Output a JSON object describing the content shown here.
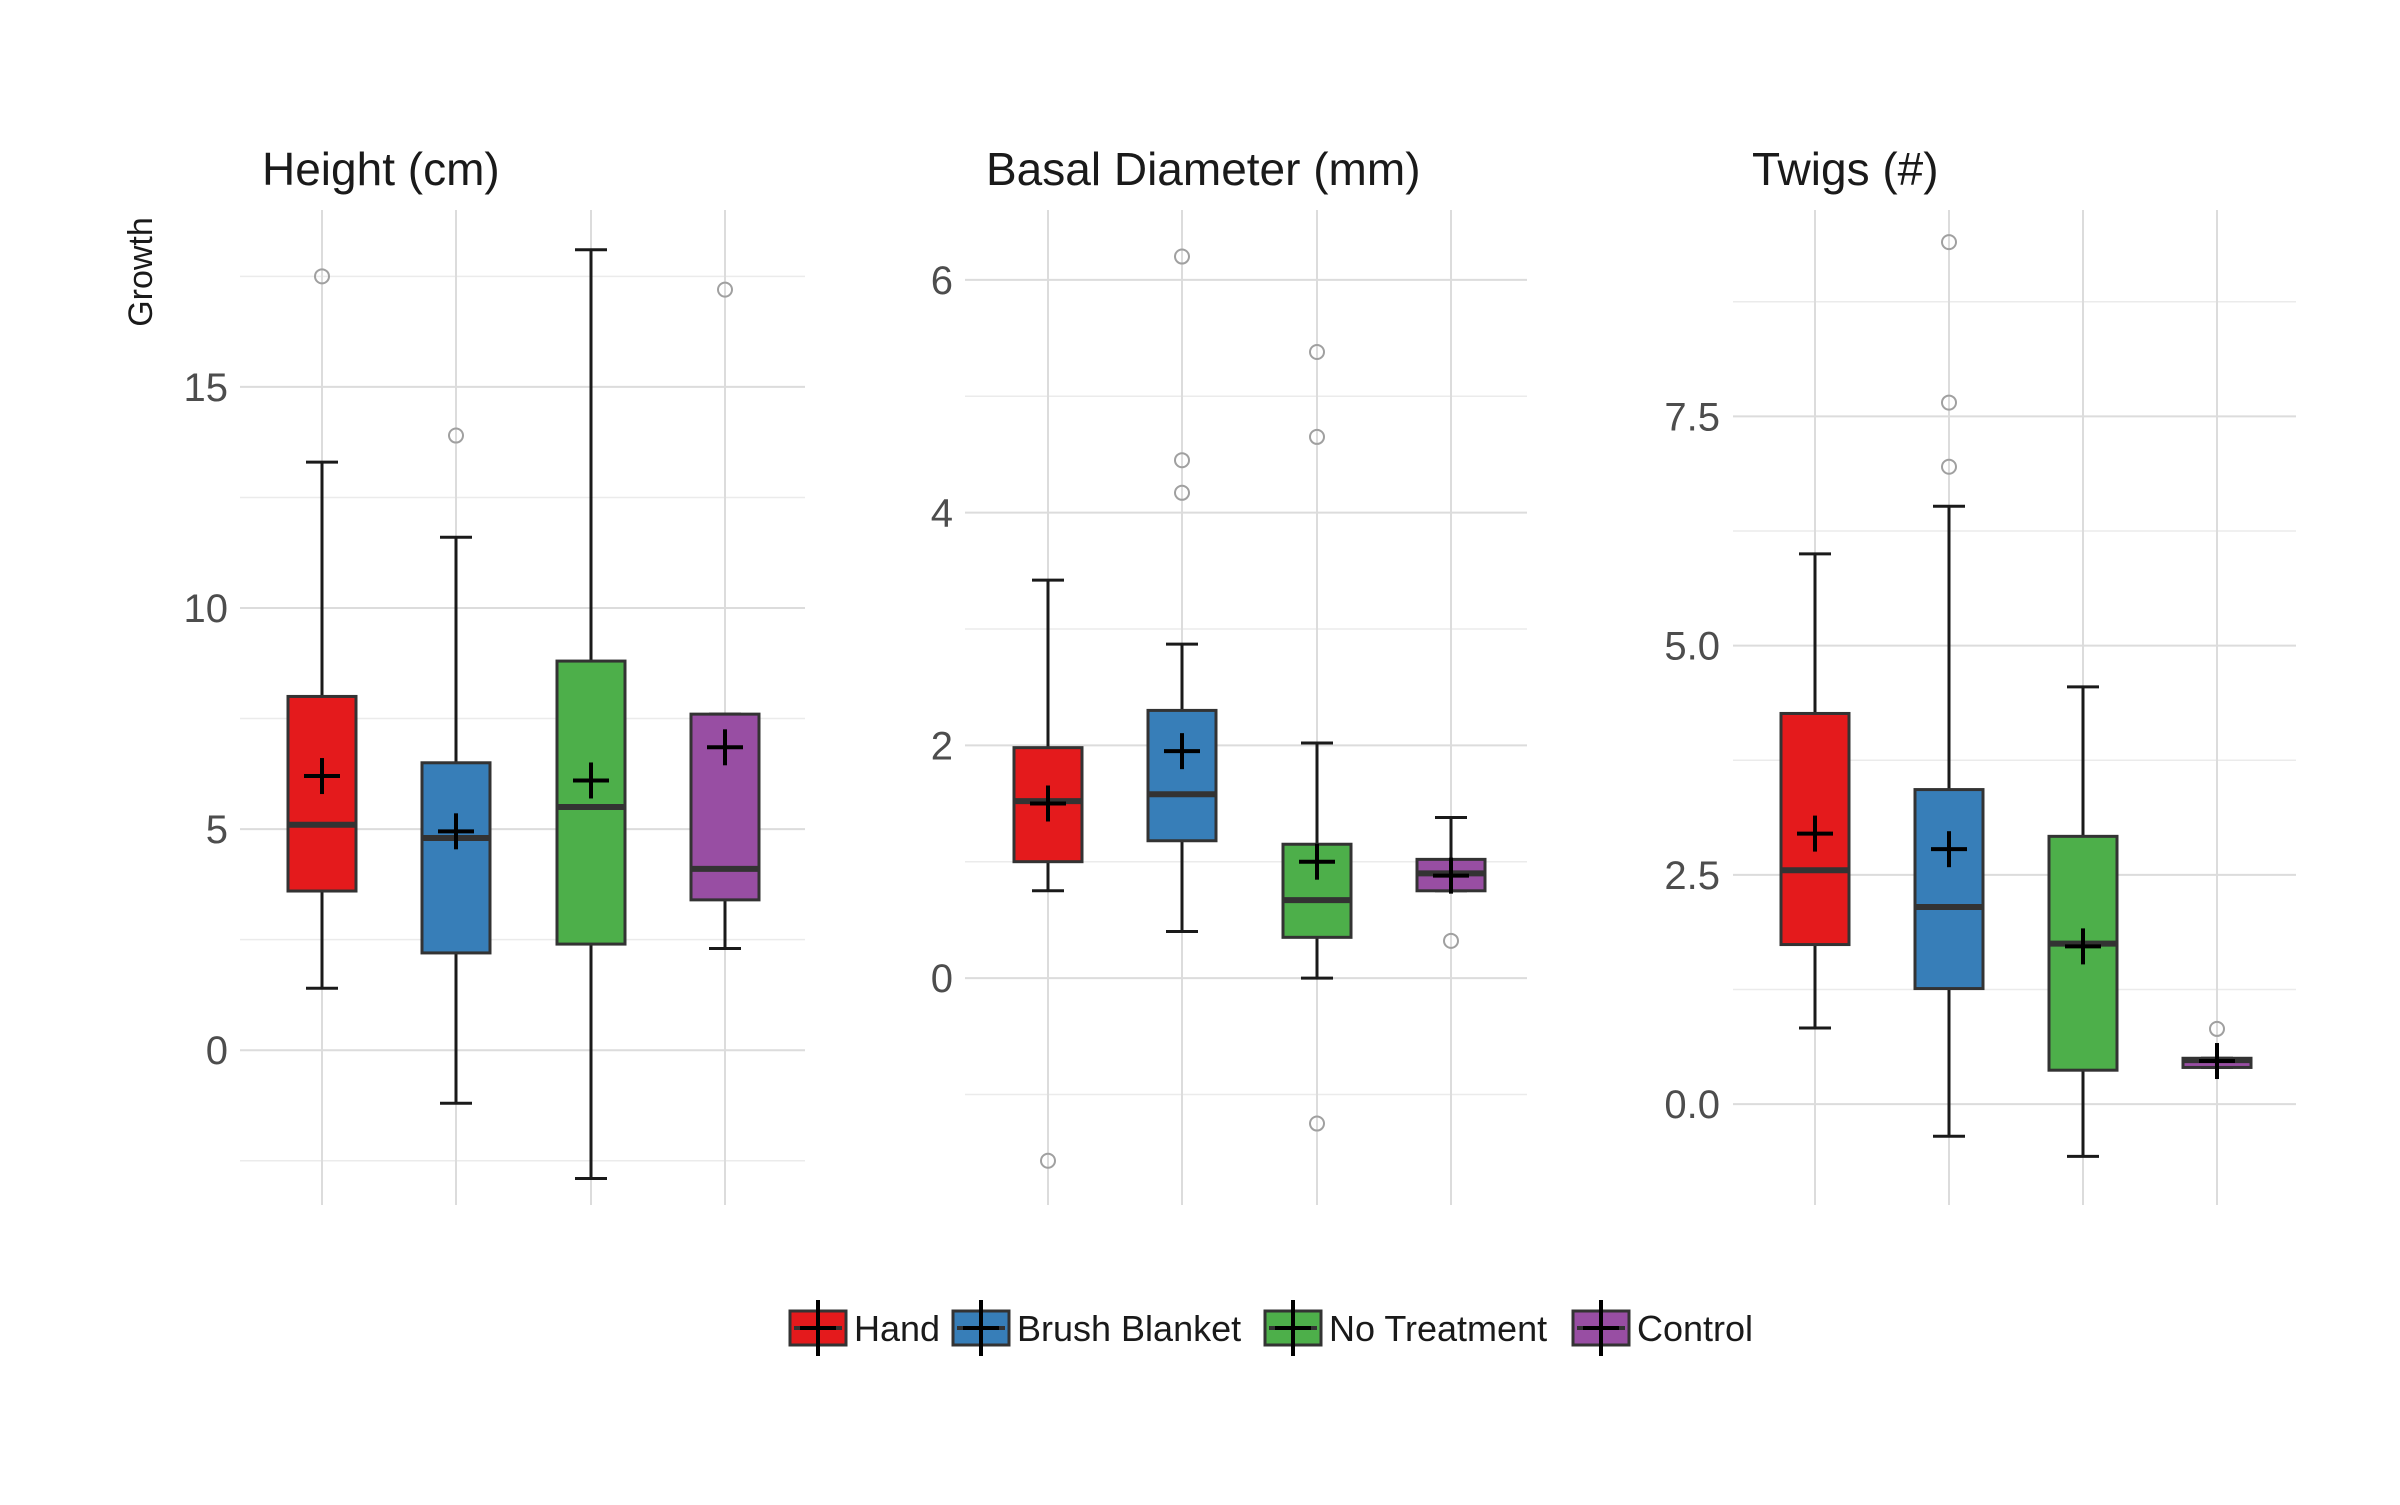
{
  "chart_data": {
    "type": "boxplot",
    "ylabel": "Growth",
    "legend": {
      "position": "bottom",
      "entries": [
        "Hand",
        "Brush Blanket",
        "No Treatment",
        "Control"
      ]
    },
    "colors": {
      "Hand": "#e41a1c",
      "Brush Blanket": "#377eb8",
      "No Treatment": "#4daf4a",
      "Control": "#984ea3"
    },
    "grid": true,
    "panels": [
      {
        "title": "Height (cm)",
        "ylim": [
          -3.5,
          19.0
        ],
        "yticks": [
          0,
          5,
          10,
          15
        ],
        "yticklabels": [
          "0",
          "5",
          "10",
          "15"
        ],
        "boxes": [
          {
            "group": "Hand",
            "whisker_low": 1.4,
            "q1": 3.6,
            "median": 5.1,
            "q3": 8.0,
            "whisker_high": 13.3,
            "mean": 6.2,
            "outliers": [
              17.5
            ]
          },
          {
            "group": "Brush Blanket",
            "whisker_low": -1.2,
            "q1": 2.2,
            "median": 4.8,
            "q3": 6.5,
            "whisker_high": 11.6,
            "mean": 4.95,
            "outliers": [
              13.9
            ]
          },
          {
            "group": "No Treatment",
            "whisker_low": -2.9,
            "q1": 2.4,
            "median": 5.5,
            "q3": 8.8,
            "whisker_high": 18.1,
            "mean": 6.1,
            "outliers": []
          },
          {
            "group": "Control",
            "whisker_low": 2.3,
            "q1": 3.4,
            "median": 4.1,
            "q3": 7.6,
            "whisker_high": 7.6,
            "mean": 6.85,
            "outliers": [
              17.2
            ]
          }
        ]
      },
      {
        "title": "Basal Diameter (mm)",
        "ylim": [
          -1.95,
          6.6
        ],
        "yticks": [
          0,
          2,
          4,
          6
        ],
        "yticklabels": [
          "0",
          "2",
          "4",
          "6"
        ],
        "boxes": [
          {
            "group": "Hand",
            "whisker_low": 0.75,
            "q1": 1.0,
            "median": 1.52,
            "q3": 1.98,
            "whisker_high": 3.42,
            "mean": 1.5,
            "outliers": [
              -1.57
            ]
          },
          {
            "group": "Brush Blanket",
            "whisker_low": 0.4,
            "q1": 1.18,
            "median": 1.58,
            "q3": 2.3,
            "whisker_high": 2.87,
            "mean": 1.95,
            "outliers": [
              6.2,
              4.45,
              4.17
            ]
          },
          {
            "group": "No Treatment",
            "whisker_low": 0.0,
            "q1": 0.35,
            "median": 0.67,
            "q3": 1.15,
            "whisker_high": 2.02,
            "mean": 1.0,
            "outliers": [
              5.38,
              4.65,
              -1.25
            ]
          },
          {
            "group": "Control",
            "whisker_low": 0.75,
            "q1": 0.75,
            "median": 0.9,
            "q3": 1.02,
            "whisker_high": 1.38,
            "mean": 0.88,
            "outliers": [
              0.32
            ]
          }
        ]
      },
      {
        "title": "Twigs (#)",
        "ylim": [
          -1.1,
          9.75
        ],
        "yticks": [
          0.0,
          2.5,
          5.0,
          7.5
        ],
        "yticklabels": [
          "0.0",
          "2.5",
          "5.0",
          "7.5"
        ],
        "boxes": [
          {
            "group": "Hand",
            "whisker_low": 0.83,
            "q1": 1.74,
            "median": 2.55,
            "q3": 4.26,
            "whisker_high": 6.0,
            "mean": 2.95,
            "outliers": []
          },
          {
            "group": "Brush Blanket",
            "whisker_low": -0.35,
            "q1": 1.26,
            "median": 2.15,
            "q3": 3.43,
            "whisker_high": 6.52,
            "mean": 2.78,
            "outliers": [
              9.4,
              7.65,
              6.95
            ]
          },
          {
            "group": "No Treatment",
            "whisker_low": -0.57,
            "q1": 0.37,
            "median": 1.75,
            "q3": 2.92,
            "whisker_high": 4.55,
            "mean": 1.72,
            "outliers": []
          },
          {
            "group": "Control",
            "whisker_low": 0.4,
            "q1": 0.4,
            "median": 0.48,
            "q3": 0.5,
            "whisker_high": 0.5,
            "mean": 0.47,
            "outliers": [
              0.82
            ]
          }
        ]
      }
    ]
  }
}
